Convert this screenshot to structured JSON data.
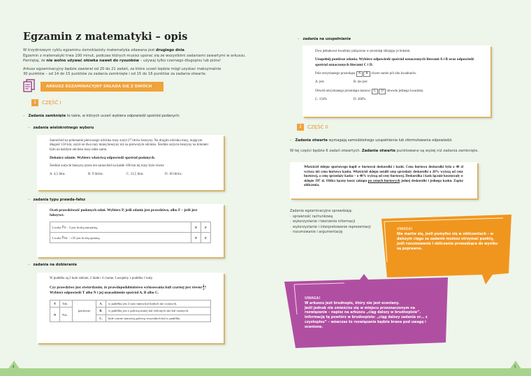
{
  "left": {
    "title": "Egzamin z matematyki – opis",
    "intro": [
      {
        "pre": "W trzydniowym cyklu egzaminu ósmoklasisty matematyka zdawana jest ",
        "bold": "drugiego dnia",
        "post": "."
      },
      {
        "pre": "Egzamin z matematyki trwa 100 minut, podczas których musisz uporać się ze wszystkimi zadaniami zawartymi w arkuszu.",
        "bold": "",
        "post": ""
      },
      {
        "pre": "Pamiętaj, że ",
        "bold": "nie wolno używać ołówka nawet do rysunków",
        "post": " – używaj tylko czarnego długopisu lub pióra!"
      }
    ],
    "intro2": [
      "Arkusz egzaminacyjny będzie zawierał od 20 do 21 zadań, za które uczeń będzie mógł uzyskać maksymalnie",
      "30 punktów – od 14 do 15 punktów za zadania zamknięte i od 15 do 16 punktów za zadania otwarte."
    ],
    "banner": "ARKUSZ EGZAMINACYJNY SKŁADA SIĘ Z DWÓCH CZĘŚCI:",
    "part_num": "1",
    "part_label": "CZĘŚĆ I",
    "closed_bold": "Zadania zamknięte",
    "closed_rest": " to takie, w których uczeń wybiera odpowiedź spośród podanych:",
    "mc_label": "zadania wielokrotnego wyboru",
    "mc": {
      "text": "Samochód na pokonanie pierwszego odcinka trasy zużył 27 litrów benzyny. Na drugim odcinku trasy, mającym długość 150 km, zużył on dwa razy mniej benzyny niż na pierwszym odcinku. Średnie zużycie benzyny na kilometr było na każdym odcinku trasy takie samo.",
      "instr": "Dokończ zdanie. Wybierz właściwą odpowiedź spośród podanych.",
      "q": "Średnie zużycie benzyny przez ten samochód na każde 100 km tej trasy było równe",
      "options": [
        "A. 4,5 litra.",
        "B. 9 litrów.",
        "C. 13,5 litra.",
        "D. 18 litrów."
      ]
    },
    "tf_label": "zadania typu prawda-fałsz",
    "tf": {
      "instr": "Oceń prawdziwość podanych zdań. Wybierz P, jeśli zdanie jest prawdziwe, albo F – jeśli jest fałszywe.",
      "rows": [
        {
          "s": "Liczba ∛8 − 3 jest liczbą naturalną.",
          "p": "P",
          "f": "F"
        },
        {
          "s": "Liczba ∛64 − √25 jest liczbą ujemną.",
          "p": "P",
          "f": "F"
        }
      ]
    },
    "match_label": "zadania na dobieranie",
    "match": {
      "text": "W pudełku są 2 kule zielone, 2 białe i 4 czarne. Losujemy z pudełka 1 kulę.",
      "instr1": "Czy prawdziwe jest stwierdzenie, że prawdopodobieństwo wylosowania kuli czarnej jest równe ",
      "frac_n": "1",
      "frac_d": "2",
      "instr2": "? Wybierz odpowiedź T albo N i jej uzasadnienie spośród A, B albo C.",
      "t": "T",
      "tak": "Tak,",
      "n": "N",
      "nie": "Nie,",
      "because": "ponieważ",
      "reasons": [
        {
          "l": "A.",
          "t": "w pudełku jest 2 razy mniej kul białych niż czarnych."
        },
        {
          "l": "B.",
          "t": "w pudełku jest o połowę mniej kul zielonych niż kul czarnych."
        },
        {
          "l": "C.",
          "t": "kule czarne stanowią połowę wszystkich kul w pudełku."
        }
      ]
    },
    "page_number": "4"
  },
  "right": {
    "fill_label": "zadania na uzupełnianie",
    "fill": {
      "text": "Dwa jednakowe kwadraty połączono w prostokąt sklejając je bokami.",
      "instr": "Uzupełnij poniższe zdania. Wybierz odpowiedź spośród oznaczonych literami A i B oraz odpowiedź spośród oznaczonych literami C i D.",
      "s1a": "Pole otrzymanego prostokąta",
      "s1b": "równe sumie pól obu kwadratów.",
      "o1": [
        "A. jest",
        "B. nie jest"
      ],
      "s2a": "Obwód otrzymanego prostokąta stanowi",
      "s2b": "obwodu jednego kwadratu.",
      "o2": [
        "C. 150%",
        "D. 200%"
      ],
      "ab": [
        "A",
        "B"
      ],
      "cd": [
        "C",
        "D"
      ]
    },
    "part_num": "2",
    "part_label": "CZĘŚĆ II",
    "open_bold": "Zadania otwarte",
    "open_rest": " wymagają samodzielnego uzupełnienia lub sformułowania odpowiedzi.",
    "open2_pre": "W tej części będzie 6 zadań otwartych. ",
    "open2_bold": "Zadania otwarte",
    "open2_post": " punktowane są wyżej niż zadania zamknięte.",
    "open_task": {
      "a": "Właściciel sklepu sportowego kupił w hurtowni deskorolki i kaski. Cena hurtowa deskorolki była o 40 zł wyższa niż cena hurtowa kasku. Właściciel sklepu ustalił cenę sprzedaży deskorolki o 20% wyższą od ceny hurtowej, a cenę sprzedaży kasku – o 40% wyższą od ceny hurtowej. Deskorolka i kask łącznie kosztowały w sklepie 397 zł. Oblicz łączny koszt zakupu ",
      "u": "po cenach hurtowych",
      "b": " jednej deskorolki i jednego kasku. Zapisz obliczenia."
    },
    "checks_title": "Zadania egzaminacyjne sprawdzają:",
    "checks": [
      "sprawność rachunkową",
      "wykorzystanie i tworzenie informacji",
      "wykorzystanie i interpretowanie reprezentacji",
      "rozumowanie i argumentację"
    ],
    "note1": {
      "title": "UWAGA!",
      "text": "Nie martw się, jeśli pomylisz się w obliczeniach – w dalszym ciągu za zadanie możesz otrzymać punkty, jeśli rozumowanie i obliczenia prowadzące do wyniku są poprawne."
    },
    "note2": {
      "title": "UWAGA!",
      "lines": [
        "W arkuszu jest brudnopis, który nie jest oceniany.",
        "Jeśli jednak nie zmieścisz się w miejscu przeznaczonym na rozwiązanie – napisz na arkuszu „ciąg dalszy w brudnopisie”. Informację tę powtórz w brudnopisie: „ciąg dalszy zadania nr… z czystopisu” – wówczas to rozwiązanie będzie brane pod uwagę i ocenione."
      ]
    },
    "page_number": "5"
  },
  "colors": {
    "orange": "#f0a23b",
    "purple": "#b04fa2",
    "green": "#a8d38c",
    "background": "#eef5ea"
  }
}
